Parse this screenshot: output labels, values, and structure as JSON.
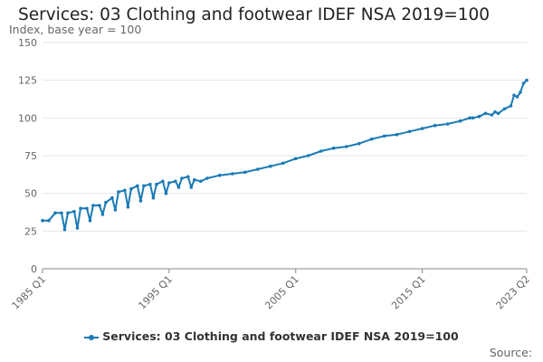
{
  "chart_data": {
    "type": "line",
    "title": "Services: 03 Clothing and footwear IDEF NSA 2019=100",
    "ylabel": "Index, base year = 100",
    "xlabel": "",
    "ylim": [
      0,
      150
    ],
    "yticks": [
      0,
      25,
      50,
      75,
      100,
      125,
      150
    ],
    "x_ticks": [
      "1985 Q1",
      "1995 Q1",
      "2005 Q1",
      "2015 Q1",
      "2023 Q2"
    ],
    "grid": true,
    "legend_position": "bottom",
    "series": [
      {
        "name": "Services: 03 Clothing and footwear IDEF NSA 2019=100",
        "color": "#1a7ab5",
        "points": [
          {
            "x": "1985 Q1",
            "y": 32
          },
          {
            "x": "1985 Q3",
            "y": 32
          },
          {
            "x": "1986 Q1",
            "y": 37
          },
          {
            "x": "1986 Q3",
            "y": 37
          },
          {
            "x": "1986 Q4",
            "y": 26
          },
          {
            "x": "1987 Q1",
            "y": 37
          },
          {
            "x": "1987 Q3",
            "y": 38
          },
          {
            "x": "1987 Q4",
            "y": 27
          },
          {
            "x": "1988 Q1",
            "y": 40
          },
          {
            "x": "1988 Q3",
            "y": 40
          },
          {
            "x": "1988 Q4",
            "y": 32
          },
          {
            "x": "1989 Q1",
            "y": 42
          },
          {
            "x": "1989 Q3",
            "y": 42
          },
          {
            "x": "1989 Q4",
            "y": 36
          },
          {
            "x": "1990 Q1",
            "y": 44
          },
          {
            "x": "1990 Q3",
            "y": 47
          },
          {
            "x": "1990 Q4",
            "y": 39
          },
          {
            "x": "1991 Q1",
            "y": 51
          },
          {
            "x": "1991 Q3",
            "y": 52
          },
          {
            "x": "1991 Q4",
            "y": 41
          },
          {
            "x": "1992 Q1",
            "y": 53
          },
          {
            "x": "1992 Q3",
            "y": 55
          },
          {
            "x": "1992 Q4",
            "y": 45
          },
          {
            "x": "1993 Q1",
            "y": 55
          },
          {
            "x": "1993 Q3",
            "y": 56
          },
          {
            "x": "1993 Q4",
            "y": 47
          },
          {
            "x": "1994 Q1",
            "y": 56
          },
          {
            "x": "1994 Q3",
            "y": 58
          },
          {
            "x": "1994 Q4",
            "y": 50
          },
          {
            "x": "1995 Q1",
            "y": 57
          },
          {
            "x": "1995 Q3",
            "y": 58
          },
          {
            "x": "1995 Q4",
            "y": 54
          },
          {
            "x": "1996 Q1",
            "y": 60
          },
          {
            "x": "1996 Q3",
            "y": 61
          },
          {
            "x": "1996 Q4",
            "y": 54
          },
          {
            "x": "1997 Q1",
            "y": 59
          },
          {
            "x": "1997 Q3",
            "y": 58
          },
          {
            "x": "1998 Q1",
            "y": 60
          },
          {
            "x": "1999 Q1",
            "y": 62
          },
          {
            "x": "2000 Q1",
            "y": 63
          },
          {
            "x": "2001 Q1",
            "y": 64
          },
          {
            "x": "2002 Q1",
            "y": 66
          },
          {
            "x": "2003 Q1",
            "y": 68
          },
          {
            "x": "2004 Q1",
            "y": 70
          },
          {
            "x": "2005 Q1",
            "y": 73
          },
          {
            "x": "2006 Q1",
            "y": 75
          },
          {
            "x": "2007 Q1",
            "y": 78
          },
          {
            "x": "2008 Q1",
            "y": 80
          },
          {
            "x": "2009 Q1",
            "y": 81
          },
          {
            "x": "2010 Q1",
            "y": 83
          },
          {
            "x": "2011 Q1",
            "y": 86
          },
          {
            "x": "2012 Q1",
            "y": 88
          },
          {
            "x": "2013 Q1",
            "y": 89
          },
          {
            "x": "2014 Q1",
            "y": 91
          },
          {
            "x": "2015 Q1",
            "y": 93
          },
          {
            "x": "2016 Q1",
            "y": 95
          },
          {
            "x": "2017 Q1",
            "y": 96
          },
          {
            "x": "2018 Q1",
            "y": 98
          },
          {
            "x": "2018 Q4",
            "y": 100
          },
          {
            "x": "2019 Q1",
            "y": 100
          },
          {
            "x": "2019 Q3",
            "y": 101
          },
          {
            "x": "2020 Q1",
            "y": 103
          },
          {
            "x": "2020 Q3",
            "y": 102
          },
          {
            "x": "2020 Q4",
            "y": 104
          },
          {
            "x": "2021 Q1",
            "y": 103
          },
          {
            "x": "2021 Q3",
            "y": 106
          },
          {
            "x": "2022 Q1",
            "y": 108
          },
          {
            "x": "2022 Q2",
            "y": 115
          },
          {
            "x": "2022 Q3",
            "y": 114
          },
          {
            "x": "2022 Q4",
            "y": 117
          },
          {
            "x": "2023 Q1",
            "y": 123
          },
          {
            "x": "2023 Q2",
            "y": 125
          }
        ]
      }
    ]
  },
  "legend": {
    "label": "Services: 03 Clothing and footwear IDEF NSA 2019=100"
  },
  "source": {
    "label": "Source:"
  }
}
